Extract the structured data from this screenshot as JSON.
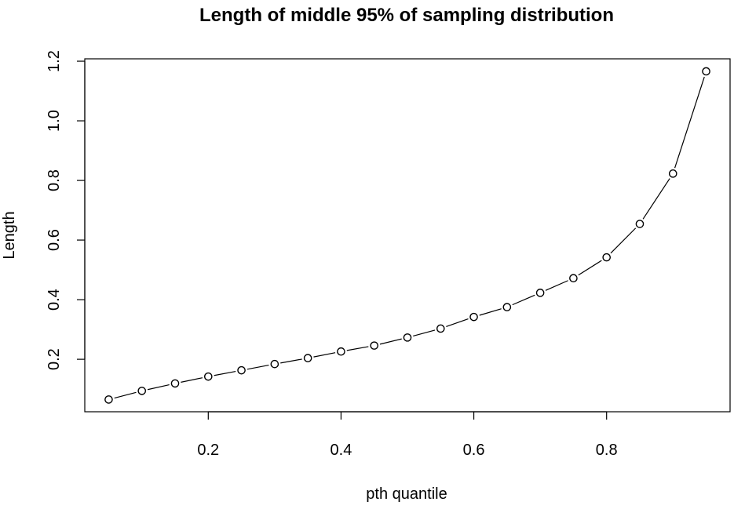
{
  "chart_data": {
    "type": "line",
    "title": "Length of middle 95% of sampling distribution",
    "xlabel": "pth quantile",
    "ylabel": "Length",
    "xlim": [
      0.014,
      0.986
    ],
    "ylim": [
      0.024,
      1.208
    ],
    "x_ticks": [
      0.2,
      0.4,
      0.6,
      0.8
    ],
    "x_tick_labels": [
      "0.2",
      "0.4",
      "0.6",
      "0.8"
    ],
    "y_ticks": [
      0.2,
      0.4,
      0.6,
      0.8,
      1.0,
      1.2
    ],
    "y_tick_labels": [
      "0.2",
      "0.4",
      "0.6",
      "0.8",
      "1.0",
      "1.2"
    ],
    "grid": false,
    "legend": "none",
    "marker": "open-circle",
    "line_style": "solid",
    "colors": {
      "line": "#000000",
      "marker": "#000000",
      "frame": "#000000",
      "background": "#ffffff"
    },
    "series": [
      {
        "x": [
          0.05,
          0.1,
          0.15,
          0.2,
          0.25,
          0.3,
          0.35,
          0.4,
          0.45,
          0.5,
          0.55,
          0.6,
          0.65,
          0.7,
          0.75,
          0.8,
          0.85,
          0.9,
          0.95
        ],
        "y": [
          0.065,
          0.094,
          0.119,
          0.142,
          0.163,
          0.184,
          0.204,
          0.226,
          0.246,
          0.273,
          0.303,
          0.342,
          0.375,
          0.423,
          0.472,
          0.542,
          0.654,
          0.823,
          1.166
        ]
      }
    ]
  }
}
